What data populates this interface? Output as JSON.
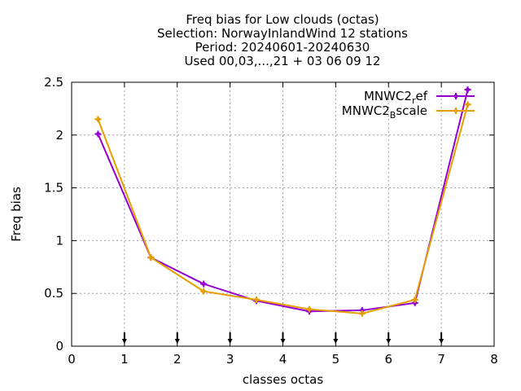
{
  "chart_data": {
    "type": "line",
    "title_lines": [
      "Freq bias  for Low clouds (octas)",
      "Selection: NorwayInlandWind     12 stations",
      "Period: 20240601-20240630",
      "Used 00,03,...,21 + 03 06 09 12"
    ],
    "xlabel": "classes octas",
    "ylabel": "Freq bias",
    "xlim": [
      0,
      8
    ],
    "ylim": [
      0,
      2.5
    ],
    "xticks": [
      0,
      1,
      2,
      3,
      4,
      5,
      6,
      7,
      8
    ],
    "yticks": [
      0,
      0.5,
      1,
      1.5,
      2,
      2.5
    ],
    "ytick_labels": [
      "0",
      "0.5",
      "1",
      "1.5",
      "2",
      "2.5"
    ],
    "grid": true,
    "legend_position": "top-right",
    "x": [
      0.5,
      1.5,
      2.5,
      3.5,
      4.5,
      5.5,
      6.5,
      7.5
    ],
    "series": [
      {
        "name": "MNWC2_ref",
        "legend_main": "MNWC2",
        "legend_sub": "r",
        "legend_rest": "ef",
        "color": "#9400d3",
        "values": [
          2.01,
          0.84,
          0.59,
          0.43,
          0.33,
          0.34,
          0.41,
          2.43
        ]
      },
      {
        "name": "MNWC2_Bscale",
        "legend_main": "MNWC2",
        "legend_sub": "B",
        "legend_rest": "scale",
        "color": "#e69f00",
        "values": [
          2.15,
          0.84,
          0.52,
          0.44,
          0.35,
          0.31,
          0.44,
          2.29
        ]
      }
    ],
    "count_markers_x": [
      1,
      2,
      3,
      4,
      5,
      6,
      7
    ]
  }
}
